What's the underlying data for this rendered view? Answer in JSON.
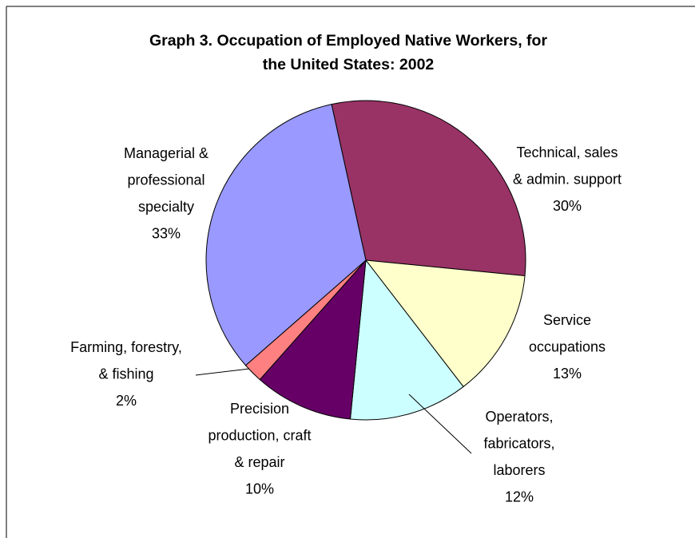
{
  "chart_data": {
    "type": "pie",
    "title": "Graph 3. Occupation of Employed Native Workers, for the United States: 2002",
    "categories": [
      [
        "Technical, sales",
        "& admin. support"
      ],
      [
        "Service",
        "occupations"
      ],
      [
        "Operators,",
        "fabricators,",
        "laborers"
      ],
      [
        "Precision",
        "production, craft",
        "& repair"
      ],
      [
        "Farming, forestry,",
        "& fishing"
      ],
      [
        "Managerial &",
        "professional",
        "specialty"
      ]
    ],
    "values": [
      30,
      13,
      12,
      10,
      2,
      33
    ],
    "value_labels": [
      "30%",
      "13%",
      "12%",
      "10%",
      "2%",
      "33%"
    ],
    "colors": [
      "#993366",
      "#ffffcc",
      "#ccffff",
      "#660066",
      "#ff8080",
      "#9999ff"
    ]
  }
}
